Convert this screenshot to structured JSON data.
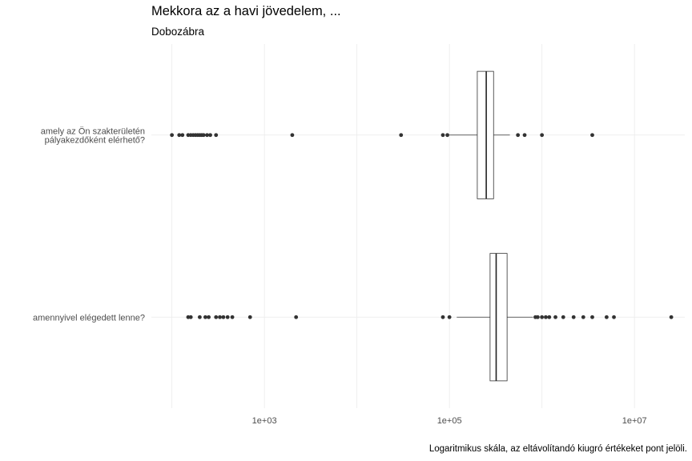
{
  "chart_data": {
    "type": "boxplot",
    "title": "Mekkora az a havi jövedelem, ...",
    "subtitle": "Dobozábra",
    "caption": "Logaritmikus skála, az eltávolítandó kiugró értékeket pont jelöli.",
    "x_scale": "log10",
    "xlim": [
      60,
      35000000
    ],
    "x_ticks": [
      1000,
      100000,
      10000000
    ],
    "x_tick_labels": [
      "1e+03",
      "1e+05",
      "1e+07"
    ],
    "grid": true,
    "categories": [
      [
        "amely az Ön szakterületén",
        "pályakezdőként elérhető?"
      ],
      [
        "amennyivel elégedett lenne?"
      ]
    ],
    "boxes": [
      {
        "whisker_low": 100000,
        "q1": 200000,
        "median": 250000,
        "q3": 300000,
        "whisker_high": 450000,
        "outliers": [
          100,
          120,
          130,
          150,
          160,
          170,
          180,
          190,
          200,
          210,
          220,
          240,
          260,
          300,
          2000,
          30000,
          85000,
          95000,
          550000,
          650000,
          1000000,
          3500000
        ]
      },
      {
        "whisker_low": 120000,
        "q1": 275000,
        "median": 320000,
        "q3": 420000,
        "whisker_high": 800000,
        "outliers": [
          150,
          160,
          200,
          230,
          250,
          300,
          330,
          360,
          400,
          450,
          700,
          2200,
          85000,
          100000,
          850000,
          900000,
          1000000,
          1100000,
          1200000,
          1400000,
          1700000,
          2200000,
          2800000,
          3500000,
          5000000,
          6000000,
          25000000
        ]
      }
    ]
  }
}
